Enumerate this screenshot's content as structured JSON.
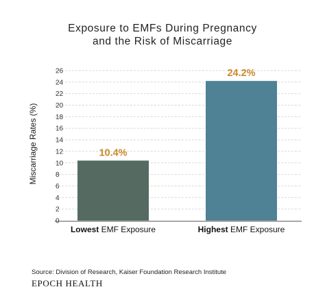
{
  "chart_data": {
    "type": "bar",
    "title_lines": [
      "Exposure to EMFs During Pregnancy",
      "and the Risk of Miscarriage"
    ],
    "ylabel": "Miscarriage Rates (%)",
    "xlabel": "",
    "ylim": [
      0,
      26
    ],
    "yticks": [
      0,
      2,
      4,
      6,
      8,
      10,
      12,
      14,
      16,
      18,
      20,
      22,
      24,
      26
    ],
    "grid": true,
    "categories": [
      {
        "strong": "Lowest",
        "rest": " EMF Exposure"
      },
      {
        "strong": "Highest",
        "rest": " EMF Exposure"
      }
    ],
    "values": [
      10.4,
      24.2
    ],
    "value_labels": [
      "10.4%",
      "24.2%"
    ],
    "colors": [
      "#556b62",
      "#4f8294"
    ],
    "label_color": "#c98a2b"
  },
  "footer": {
    "source": "Source: Division of Research, Kaiser Foundation Research Institute",
    "brand": "EPOCH HEALTH"
  }
}
